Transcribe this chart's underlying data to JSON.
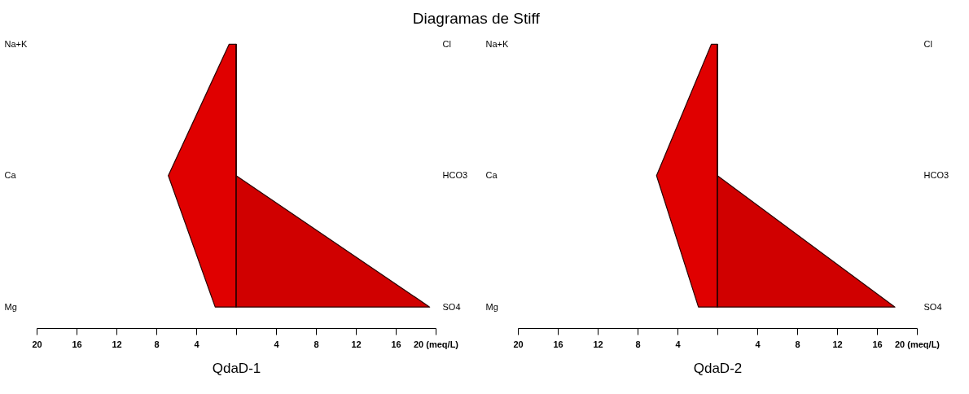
{
  "chart_data": [
    {
      "type": "area",
      "title": "Diagramas de Stiff",
      "xlabel": "QdaD-1",
      "orientation": "horizontal",
      "categories": [
        "Na+K",
        "Ca",
        "Mg"
      ],
      "y2_categories": [
        "Cl",
        "HCO3",
        "SO4"
      ],
      "series": [
        {
          "color": "#e00000",
          "values": [
            -0.7,
            -6.8,
            -2.1
          ]
        },
        {
          "color": "#d00000",
          "values": [
            0,
            0,
            19.4
          ]
        }
      ],
      "xlim": [
        -20,
        20
      ],
      "xticks": [
        {
          "value": -20,
          "label": "20"
        },
        {
          "value": -16,
          "label": "16"
        },
        {
          "value": -12,
          "label": "12"
        },
        {
          "value": -8,
          "label": "8"
        },
        {
          "value": -4,
          "label": "4"
        },
        {
          "value": 0,
          "label": null
        },
        4,
        8,
        12,
        16,
        {
          "value": 20,
          "label": "20 (meq/L)"
        }
      ],
      "ref_lines": [
        {
          "axis": "x",
          "value": 0
        }
      ]
    },
    {
      "type": "area",
      "xlabel": "QdaD-2",
      "orientation": "horizontal",
      "categories": [
        "Na+K",
        "Ca",
        "Mg"
      ],
      "y2_categories": [
        "Cl",
        "HCO3",
        "SO4"
      ],
      "series": [
        {
          "color": "#e00000",
          "values": [
            -0.6,
            -6.1,
            -1.9
          ]
        },
        {
          "color": "#d00000",
          "values": [
            0,
            0,
            17.8
          ]
        }
      ],
      "xlim": [
        -20,
        20
      ],
      "xticks": [
        {
          "value": -20,
          "label": "20"
        },
        {
          "value": -16,
          "label": "16"
        },
        {
          "value": -12,
          "label": "12"
        },
        {
          "value": -8,
          "label": "8"
        },
        {
          "value": -4,
          "label": "4"
        },
        {
          "value": 0,
          "label": null
        },
        4,
        8,
        12,
        16,
        {
          "value": 20,
          "label": "20 (meq/L)"
        }
      ],
      "ref_lines": [
        {
          "axis": "x",
          "value": 0
        }
      ]
    }
  ]
}
